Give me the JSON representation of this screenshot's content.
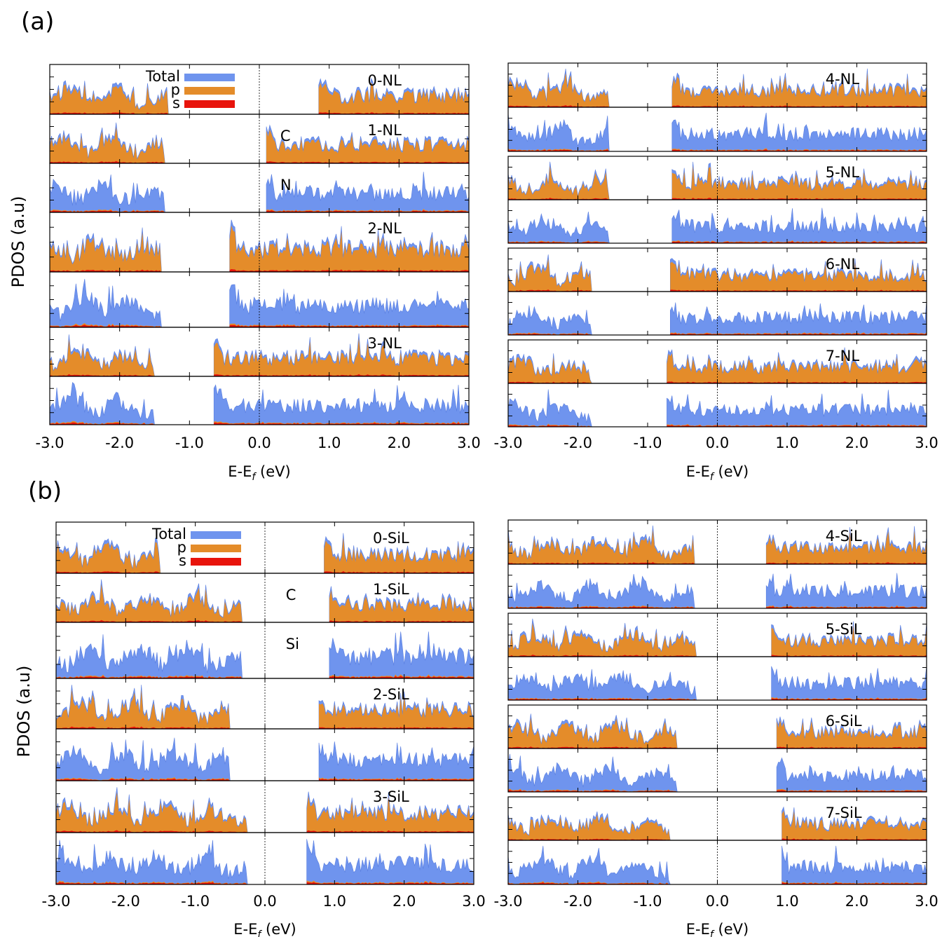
{
  "figure": {
    "panel_a_label": "(a)",
    "panel_b_label": "(b)",
    "ylabel": "PDOS (a.u)",
    "xlabel_main": "E-E",
    "xlabel_sub": "f",
    "xlabel_unit": " (eV)",
    "xticks": [
      "-3.0",
      "-2.0",
      "-1.0",
      "0.0",
      "1.0",
      "2.0",
      "3.0"
    ],
    "legend": [
      {
        "name": "Total",
        "color": "#6f94ee"
      },
      {
        "name": "p",
        "color": "#e48c2a"
      },
      {
        "name": "s",
        "color": "#e8140c"
      }
    ]
  },
  "chart_data": [
    {
      "type": "area",
      "group": "(a)",
      "xlim": [
        -3.0,
        3.0
      ],
      "panels": [
        {
          "label": "0-NL",
          "gap": [
            -1.3,
            0.85
          ]
        },
        {
          "label": "1-NL",
          "atom": "C",
          "gap": [
            -1.35,
            0.1
          ]
        },
        {
          "atom": "N",
          "gap": [
            -1.35,
            0.1
          ]
        },
        {
          "label": "2-NL",
          "gap": [
            -1.4,
            -0.45
          ]
        },
        {
          "gap": [
            -1.4,
            -0.45
          ]
        },
        {
          "label": "3-NL",
          "gap": [
            -1.5,
            -0.65
          ]
        },
        {
          "gap": [
            -1.5,
            -0.65
          ]
        }
      ]
    },
    {
      "type": "area",
      "group": "(a)",
      "xlim": [
        -3.0,
        3.0
      ],
      "panels": [
        {
          "label": "4-NL",
          "gap": [
            -1.55,
            -0.65
          ]
        },
        {
          "gap": [
            -1.55,
            -0.65
          ]
        },
        {
          "label": "5-NL",
          "gap": [
            -1.55,
            -0.65
          ]
        },
        {
          "gap": [
            -1.55,
            -0.65
          ]
        },
        {
          "label": "6-NL",
          "gap": [
            -1.8,
            -0.7
          ]
        },
        {
          "gap": [
            -1.8,
            -0.7
          ]
        },
        {
          "label": "7-NL",
          "gap": [
            -1.8,
            -0.75
          ]
        },
        {
          "gap": [
            -1.8,
            -0.75
          ]
        }
      ]
    },
    {
      "type": "area",
      "group": "(b)",
      "xlim": [
        -3.0,
        3.0
      ],
      "panels": [
        {
          "label": "0-SiL",
          "gap": [
            -1.5,
            0.85
          ]
        },
        {
          "label": "1-SiL",
          "atom": "C",
          "gap": [
            -0.35,
            0.9
          ]
        },
        {
          "atom": "Si",
          "gap": [
            -0.35,
            0.9
          ]
        },
        {
          "label": "2-SiL",
          "gap": [
            -0.5,
            0.75
          ]
        },
        {
          "gap": [
            -0.5,
            0.75
          ]
        },
        {
          "label": "3-SiL",
          "gap": [
            -0.25,
            0.6
          ]
        },
        {
          "gap": [
            -0.25,
            0.6
          ]
        }
      ]
    },
    {
      "type": "area",
      "group": "(b)",
      "xlim": [
        -3.0,
        3.0
      ],
      "panels": [
        {
          "label": "4-SiL",
          "gap": [
            -0.35,
            0.7
          ]
        },
        {
          "gap": [
            -0.35,
            0.7
          ]
        },
        {
          "label": "5-SiL",
          "gap": [
            -0.3,
            0.75
          ]
        },
        {
          "gap": [
            -0.3,
            0.75
          ]
        },
        {
          "label": "6-SiL",
          "gap": [
            -0.6,
            0.85
          ]
        },
        {
          "gap": [
            -0.6,
            0.85
          ]
        },
        {
          "label": "7-SiL",
          "gap": [
            -0.7,
            0.9
          ]
        },
        {
          "gap": [
            -0.7,
            0.9
          ]
        }
      ]
    }
  ]
}
